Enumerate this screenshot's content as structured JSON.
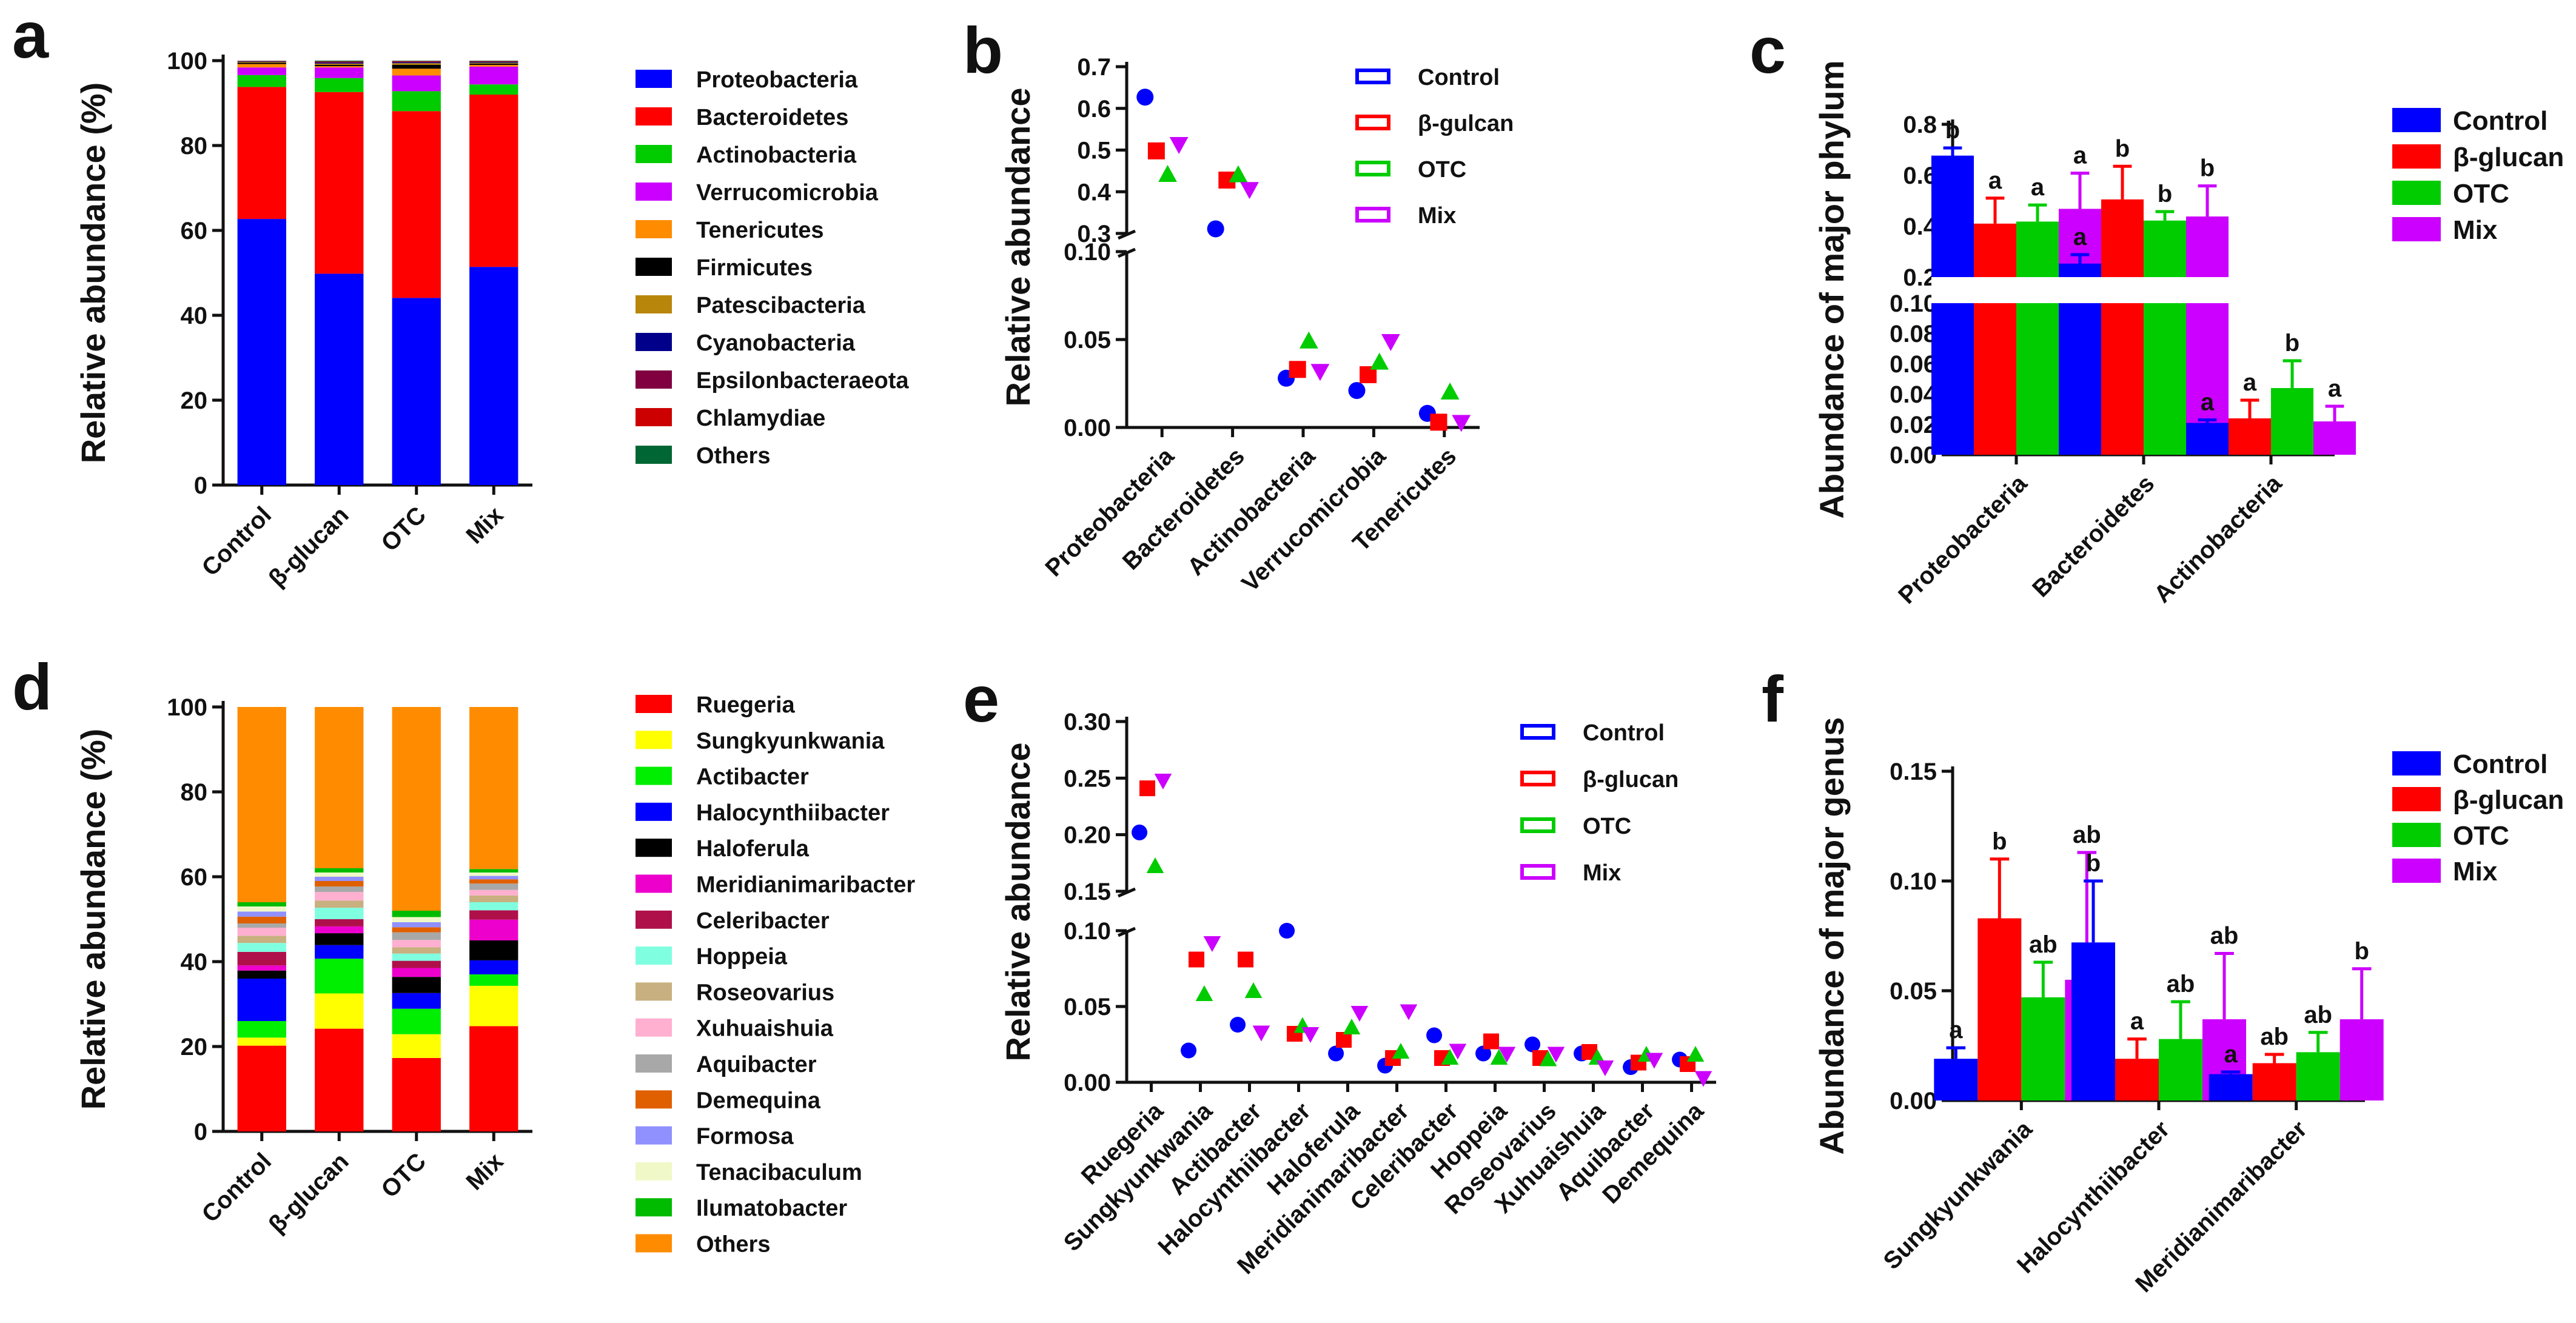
{
  "chart_data": [
    {
      "panel": "a",
      "type": "stacked-bar",
      "ylabel": "Relative abundance (%)",
      "ylim": [
        0,
        100
      ],
      "yticks": [
        "0",
        "20",
        "40",
        "60",
        "80",
        "100"
      ],
      "categories": [
        "Control",
        "β-glucan",
        "OTC",
        "Mix"
      ],
      "series": [
        {
          "name": "Proteobacteria",
          "color": "#0000ff",
          "values": [
            62.7,
            49.8,
            44.1,
            51.4
          ]
        },
        {
          "name": "Bacteroidetes",
          "color": "#ff0000",
          "values": [
            31.1,
            42.8,
            44.0,
            40.6
          ]
        },
        {
          "name": "Actinobacteria",
          "color": "#00cc00",
          "values": [
            2.8,
            3.3,
            4.7,
            2.4
          ]
        },
        {
          "name": "Verrucomicrobia",
          "color": "#cc00ff",
          "values": [
            1.8,
            2.5,
            3.7,
            4.2
          ]
        },
        {
          "name": "Tenericutes",
          "color": "#ff8c00",
          "values": [
            0.8,
            0.3,
            1.6,
            0.4
          ]
        },
        {
          "name": "Firmicutes",
          "color": "#000000",
          "values": [
            0.3,
            0.3,
            0.9,
            0.3
          ]
        },
        {
          "name": "Patescibacteria",
          "color": "#b8860b",
          "values": [
            0.2,
            0.3,
            0.4,
            0.2
          ]
        },
        {
          "name": "Cyanobacteria",
          "color": "#00008b",
          "values": [
            0.1,
            0.2,
            0.2,
            0.2
          ]
        },
        {
          "name": "Epsilonbacteraeota",
          "color": "#800040",
          "values": [
            0.1,
            0.2,
            0.2,
            0.1
          ]
        },
        {
          "name": "Chlamydiae",
          "color": "#cc0000",
          "values": [
            0.05,
            0.1,
            0.1,
            0.1
          ]
        },
        {
          "name": "Others",
          "color": "#006633",
          "values": [
            0.05,
            0.2,
            0.1,
            0.1
          ]
        }
      ]
    },
    {
      "panel": "b",
      "type": "scatter",
      "ylabel": "Relative abundance",
      "broken_axis": true,
      "upper_ylim": [
        0.3,
        0.7
      ],
      "upper_yticks": [
        "0.3",
        "0.4",
        "0.5",
        "0.6",
        "0.7"
      ],
      "lower_ylim": [
        0,
        0.1
      ],
      "lower_yticks": [
        "0.00",
        "0.05",
        "0.10"
      ],
      "categories": [
        "Proteobacteria",
        "Bacteroidetes",
        "Actinobacteria",
        "Verrucomicrobia",
        "Tenericutes"
      ],
      "series": [
        {
          "name": "Control",
          "color": "#0000ff",
          "marker": "circle",
          "values": [
            0.627,
            0.311,
            0.028,
            0.021,
            0.008
          ]
        },
        {
          "name": "β-gulcan",
          "color": "#ff0000",
          "marker": "square",
          "values": [
            0.498,
            0.428,
            0.033,
            0.03,
            0.003
          ]
        },
        {
          "name": "OTC",
          "color": "#00cc00",
          "marker": "triangle",
          "values": [
            0.441,
            0.44,
            0.049,
            0.037,
            0.02
          ]
        },
        {
          "name": "Mix",
          "color": "#cc00ff",
          "marker": "triangle-down",
          "values": [
            0.514,
            0.406,
            0.032,
            0.049,
            0.003
          ]
        }
      ]
    },
    {
      "panel": "c",
      "type": "bar",
      "ylabel": "Abundance of major phylum",
      "broken_axis": true,
      "upper_ylim": [
        0.2,
        0.8
      ],
      "upper_yticks": [
        "0.2",
        "0.4",
        "0.6",
        "0.8"
      ],
      "lower_ylim": [
        0,
        0.1
      ],
      "lower_yticks": [
        "0.00",
        "0.02",
        "0.04",
        "0.06",
        "0.08",
        "0.10"
      ],
      "categories": [
        "Proteobacteria",
        "Bacteroidetes",
        "Actinobacteria"
      ],
      "series": [
        {
          "name": "Control",
          "color": "#0000ff",
          "values": [
            0.677,
            0.253,
            0.021
          ],
          "errors": [
            0.03,
            0.035,
            0.002
          ],
          "letters": [
            "b",
            "a",
            "a"
          ]
        },
        {
          "name": "β-glucan",
          "color": "#ff0000",
          "values": [
            0.41,
            0.505,
            0.024
          ],
          "errors": [
            0.1,
            0.13,
            0.012
          ],
          "letters": [
            "a",
            "b",
            "a"
          ]
        },
        {
          "name": "OTC",
          "color": "#00cc00",
          "values": [
            0.418,
            0.422,
            0.044
          ],
          "errors": [
            0.065,
            0.035,
            0.018
          ],
          "letters": [
            "a",
            "b",
            "b"
          ]
        },
        {
          "name": "Mix",
          "color": "#cc00ff",
          "values": [
            0.468,
            0.438,
            0.022
          ],
          "errors": [
            0.14,
            0.12,
            0.01
          ],
          "letters": [
            "a",
            "b",
            "a"
          ]
        }
      ]
    },
    {
      "panel": "d",
      "type": "stacked-bar",
      "ylabel": "Relative abundance (%)",
      "ylim": [
        0,
        100
      ],
      "yticks": [
        "0",
        "20",
        "40",
        "60",
        "80",
        "100"
      ],
      "categories": [
        "Control",
        "β-glucan",
        "OTC",
        "Mix"
      ],
      "series": [
        {
          "name": "Ruegeria",
          "color": "#ff0000",
          "values": [
            20.2,
            24.2,
            17.3,
            24.8
          ]
        },
        {
          "name": "Sungkyunkwania",
          "color": "#ffff00",
          "values": [
            1.9,
            8.3,
            5.6,
            9.5
          ]
        },
        {
          "name": "Actibacter",
          "color": "#00ee00",
          "values": [
            3.9,
            8.2,
            6.0,
            2.7
          ]
        },
        {
          "name": "Halocynthiibacter",
          "color": "#0000ff",
          "values": [
            10.0,
            3.2,
            3.7,
            3.3
          ]
        },
        {
          "name": "Haloferula",
          "color": "#000000",
          "values": [
            1.9,
            2.8,
            3.8,
            4.7
          ]
        },
        {
          "name": "Meridianimaribacter",
          "color": "#ee00cc",
          "values": [
            1.2,
            1.6,
            2.1,
            4.9
          ]
        },
        {
          "name": "Celeribacter",
          "color": "#b0104a",
          "values": [
            3.2,
            1.7,
            1.7,
            2.2
          ]
        },
        {
          "name": "Hoppeia",
          "color": "#80ffe0",
          "values": [
            2.1,
            2.7,
            1.7,
            1.9
          ]
        },
        {
          "name": "Roseovarius",
          "color": "#c8b080",
          "values": [
            1.7,
            1.7,
            1.5,
            1.6
          ]
        },
        {
          "name": "Xuhuaishuia",
          "color": "#ffb0d0",
          "values": [
            1.9,
            2.0,
            1.7,
            1.3
          ]
        },
        {
          "name": "Aquibacter",
          "color": "#a8a8a8",
          "values": [
            1.0,
            1.3,
            1.8,
            1.5
          ]
        },
        {
          "name": "Demequina",
          "color": "#e06000",
          "values": [
            1.6,
            1.3,
            1.2,
            1.0
          ]
        },
        {
          "name": "Formosa",
          "color": "#9090ff",
          "values": [
            1.2,
            1.0,
            1.2,
            0.8
          ]
        },
        {
          "name": "Tenacibaculum",
          "color": "#f0f8c8",
          "values": [
            1.2,
            1.0,
            1.2,
            0.8
          ]
        },
        {
          "name": "Ilumatobacter",
          "color": "#00bb00",
          "values": [
            1.0,
            1.0,
            1.5,
            0.8
          ]
        },
        {
          "name": "Others",
          "color": "#ff8c00",
          "values": [
            46.0,
            38.0,
            48.0,
            38.2
          ]
        }
      ]
    },
    {
      "panel": "e",
      "type": "scatter",
      "ylabel": "Relative abundance",
      "broken_axis": true,
      "upper_ylim": [
        0.15,
        0.3
      ],
      "upper_yticks": [
        "0.15",
        "0.20",
        "0.25",
        "0.30"
      ],
      "lower_ylim": [
        0,
        0.1
      ],
      "lower_yticks": [
        "0.00",
        "0.05",
        "0.10"
      ],
      "categories": [
        "Ruegeria",
        "Sungkyunkwania",
        "Actibacter",
        "Halocynthiibacter",
        "Haloferula",
        "Meridianimaribacter",
        "Celeribacter",
        "Hoppeia",
        "Roseovarius",
        "Xuhuaishuia",
        "Aquibacter",
        "Demequina"
      ],
      "series": [
        {
          "name": "Control",
          "color": "#0000ff",
          "marker": "circle",
          "values": [
            0.202,
            0.021,
            0.038,
            0.1,
            0.019,
            0.011,
            0.031,
            0.019,
            0.025,
            0.019,
            0.01,
            0.015
          ]
        },
        {
          "name": "β-glucan",
          "color": "#ff0000",
          "marker": "square",
          "values": [
            0.241,
            0.081,
            0.081,
            0.032,
            0.028,
            0.016,
            0.016,
            0.027,
            0.016,
            0.02,
            0.013,
            0.012
          ]
        },
        {
          "name": "OTC",
          "color": "#00cc00",
          "marker": "triangle",
          "values": [
            0.172,
            0.058,
            0.06,
            0.037,
            0.036,
            0.02,
            0.016,
            0.016,
            0.015,
            0.016,
            0.018,
            0.018
          ]
        },
        {
          "name": "Mix",
          "color": "#cc00ff",
          "marker": "triangle-down",
          "values": [
            0.248,
            0.092,
            0.033,
            0.032,
            0.046,
            0.047,
            0.021,
            0.019,
            0.019,
            0.01,
            0.015,
            0.003
          ]
        }
      ]
    },
    {
      "panel": "f",
      "type": "bar",
      "ylabel": "Abundance of major genus",
      "ylim": [
        0,
        0.15
      ],
      "yticks": [
        "0.00",
        "0.05",
        "0.10",
        "0.15"
      ],
      "categories": [
        "Sungkyunkwania",
        "Halocynthiibacter",
        "Meridianimaribacter"
      ],
      "series": [
        {
          "name": "Control",
          "color": "#0000ff",
          "values": [
            0.019,
            0.072,
            0.012
          ],
          "errors": [
            0.005,
            0.028,
            0.001
          ],
          "letters": [
            "a",
            "b",
            "a"
          ]
        },
        {
          "name": "β-glucan",
          "color": "#ff0000",
          "values": [
            0.083,
            0.019,
            0.017
          ],
          "errors": [
            0.027,
            0.009,
            0.004
          ],
          "letters": [
            "b",
            "a",
            "ab"
          ]
        },
        {
          "name": "OTC",
          "color": "#00cc00",
          "values": [
            0.047,
            0.028,
            0.022
          ],
          "errors": [
            0.016,
            0.017,
            0.009
          ],
          "letters": [
            "ab",
            "ab",
            "ab"
          ]
        },
        {
          "name": "Mix",
          "color": "#cc00ff",
          "values": [
            0.055,
            0.037,
            0.037
          ],
          "errors": [
            0.058,
            0.03,
            0.023
          ],
          "letters": [
            "ab",
            "ab",
            "b"
          ]
        }
      ]
    }
  ]
}
